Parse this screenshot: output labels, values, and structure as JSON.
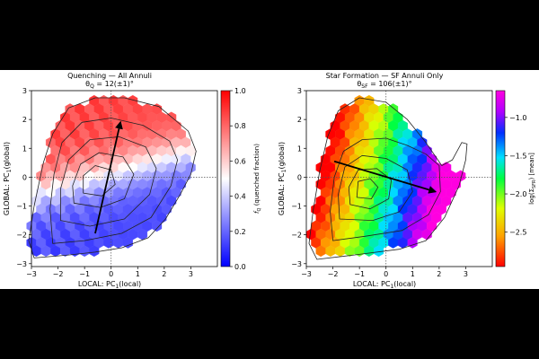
{
  "chart_data": [
    {
      "type": "heatmap",
      "subtype": "hexbin-with-density-contours",
      "title": "Quenching — All Annuli",
      "subtitle": "θ",
      "subtitle_sub": "Q",
      "subtitle_rest": " = 12(±1)°",
      "xlabel_pre": "LOCAL:  PC",
      "xlabel_sub": "1",
      "xlabel_post": "(local)",
      "ylabel_pre": "GLOBAL:  PC",
      "ylabel_sub": "1",
      "ylabel_post": "(global)",
      "xlim": [
        -3,
        4
      ],
      "ylim": [
        -3.1,
        3
      ],
      "xticks": [
        "−3",
        "−2",
        "−1",
        "0",
        "1",
        "2",
        "3"
      ],
      "xtick_values": [
        -3,
        -2,
        -1,
        0,
        1,
        2,
        3
      ],
      "yticks": [
        "3",
        "2",
        "1",
        "0",
        "−1",
        "−2",
        "−3"
      ],
      "ytick_values": [
        3,
        2,
        1,
        0,
        -1,
        -2,
        -3
      ],
      "reference_lines": {
        "x": 0,
        "y": 0
      },
      "arrow": {
        "from": [
          -0.6,
          -1.95
        ],
        "to": [
          0.35,
          1.9
        ]
      },
      "colormap": "bwr",
      "colorbar": {
        "label_pre": "f",
        "label_sub": "Q",
        "label_post": "  (quenched fraction)",
        "range": [
          0.0,
          1.0
        ],
        "ticks": [
          "1.0",
          "0.8",
          "0.6",
          "0.4",
          "0.2",
          "0.0"
        ],
        "tick_values": [
          1.0,
          0.8,
          0.6,
          0.4,
          0.2,
          0.0
        ]
      },
      "contours": [
        [
          [
            -2.9,
            -2.8
          ],
          [
            -1.6,
            -2.7
          ],
          [
            -0.6,
            -2.6
          ],
          [
            0.4,
            -2.45
          ],
          [
            1.4,
            -2.1
          ],
          [
            2.05,
            -1.45
          ],
          [
            2.6,
            -0.6
          ],
          [
            3.0,
            0.1
          ],
          [
            3.2,
            0.9
          ],
          [
            2.9,
            1.6
          ],
          [
            1.8,
            2.45
          ],
          [
            0.5,
            2.75
          ],
          [
            -0.6,
            2.75
          ],
          [
            -1.6,
            2.4
          ],
          [
            -2.2,
            1.5
          ],
          [
            -2.55,
            0.5
          ],
          [
            -2.9,
            -1.0
          ],
          [
            -3.1,
            -2.2
          ]
        ],
        [
          [
            -2.2,
            -2.3
          ],
          [
            -1.0,
            -2.2
          ],
          [
            0.4,
            -1.95
          ],
          [
            1.5,
            -1.4
          ],
          [
            2.25,
            -0.3
          ],
          [
            2.5,
            0.6
          ],
          [
            2.2,
            1.25
          ],
          [
            1.2,
            1.8
          ],
          [
            0.0,
            2.05
          ],
          [
            -1.1,
            1.9
          ],
          [
            -1.85,
            1.2
          ],
          [
            -2.15,
            0.1
          ],
          [
            -2.3,
            -1.1
          ]
        ],
        [
          [
            -1.9,
            -1.5
          ],
          [
            -0.8,
            -1.7
          ],
          [
            0.5,
            -1.45
          ],
          [
            1.45,
            -0.6
          ],
          [
            1.7,
            0.3
          ],
          [
            1.3,
            1.05
          ],
          [
            0.3,
            1.4
          ],
          [
            -0.8,
            1.3
          ],
          [
            -1.6,
            0.6
          ],
          [
            -1.9,
            -0.4
          ]
        ],
        [
          [
            -1.4,
            -0.9
          ],
          [
            -0.4,
            -1.05
          ],
          [
            0.5,
            -0.75
          ],
          [
            0.85,
            0.1
          ],
          [
            0.45,
            0.7
          ],
          [
            -0.45,
            0.85
          ],
          [
            -1.15,
            0.45
          ],
          [
            -1.45,
            -0.3
          ]
        ],
        [
          [
            -1.05,
            -0.55
          ],
          [
            -0.35,
            -0.65
          ],
          [
            0.15,
            -0.25
          ],
          [
            0.0,
            0.25
          ],
          [
            -0.6,
            0.4
          ],
          [
            -1.05,
            0.05
          ]
        ]
      ]
    },
    {
      "type": "heatmap",
      "subtype": "hexbin-with-density-contours",
      "title": "Star Formation — SF Annuli Only",
      "subtitle": "θ",
      "subtitle_sub": "SF",
      "subtitle_rest": " = 106(±1)°",
      "xlabel_pre": "LOCAL:  PC",
      "xlabel_sub": "1",
      "xlabel_post": "(local)",
      "ylabel_pre": "GLOBAL:  PC",
      "ylabel_sub": "1",
      "ylabel_post": "(global)",
      "xlim": [
        -3,
        4
      ],
      "ylim": [
        -3.1,
        3
      ],
      "xticks": [
        "−3",
        "−2",
        "−1",
        "0",
        "1",
        "2",
        "3"
      ],
      "xtick_values": [
        -3,
        -2,
        -1,
        0,
        1,
        2,
        3
      ],
      "yticks": [
        "3",
        "2",
        "1",
        "0",
        "−1",
        "−2",
        "−3"
      ],
      "ytick_values": [
        3,
        2,
        1,
        0,
        -1,
        -2,
        -3
      ],
      "reference_lines": {
        "x": 0,
        "y": 0
      },
      "arrow": {
        "from": [
          -1.95,
          0.55
        ],
        "to": [
          1.85,
          -0.5
        ]
      },
      "colormap": "gist_rainbow",
      "colorbar": {
        "label_pre": "log(Σ",
        "label_sub": "SFR",
        "label_post": ")  [mean]",
        "range": [
          -2.95,
          -0.65
        ],
        "ticks": [
          "−1.0",
          "−1.5",
          "−2.0",
          "−2.5"
        ],
        "tick_values": [
          -1.0,
          -1.5,
          -2.0,
          -2.5
        ]
      },
      "contours": [
        [
          [
            -2.6,
            -2.85
          ],
          [
            -1.2,
            -2.7
          ],
          [
            0.5,
            -2.5
          ],
          [
            1.5,
            -2.2
          ],
          [
            2.2,
            -1.4
          ],
          [
            2.75,
            -0.3
          ],
          [
            3.0,
            0.6
          ],
          [
            3.05,
            1.15
          ],
          [
            2.85,
            1.2
          ],
          [
            2.5,
            0.6
          ],
          [
            2.1,
            0.4
          ],
          [
            1.5,
            1.2
          ],
          [
            0.8,
            2.0
          ],
          [
            0.0,
            2.6
          ],
          [
            -1.0,
            2.75
          ],
          [
            -1.8,
            2.3
          ],
          [
            -2.2,
            1.4
          ],
          [
            -2.5,
            0.2
          ],
          [
            -2.75,
            -1.2
          ],
          [
            -2.9,
            -2.3
          ]
        ],
        [
          [
            -2.0,
            -2.2
          ],
          [
            -0.8,
            -2.05
          ],
          [
            0.6,
            -1.85
          ],
          [
            1.6,
            -1.3
          ],
          [
            2.05,
            -0.5
          ],
          [
            2.0,
            0.4
          ],
          [
            1.5,
            0.8
          ],
          [
            0.8,
            1.1
          ],
          [
            0.0,
            1.35
          ],
          [
            -0.9,
            1.3
          ],
          [
            -1.6,
            0.9
          ],
          [
            -1.95,
            0.0
          ],
          [
            -2.1,
            -1.2
          ]
        ],
        [
          [
            -1.75,
            -1.45
          ],
          [
            -0.5,
            -1.5
          ],
          [
            0.5,
            -1.2
          ],
          [
            1.0,
            -0.5
          ],
          [
            0.8,
            0.25
          ],
          [
            0.0,
            0.65
          ],
          [
            -0.9,
            0.75
          ],
          [
            -1.55,
            0.35
          ],
          [
            -1.8,
            -0.6
          ]
        ],
        [
          [
            -1.35,
            -0.95
          ],
          [
            -0.6,
            -1.1
          ],
          [
            0.1,
            -0.75
          ],
          [
            0.2,
            -0.1
          ],
          [
            -0.35,
            0.3
          ],
          [
            -1.05,
            0.25
          ],
          [
            -1.4,
            -0.35
          ]
        ],
        [
          [
            -1.1,
            -0.7
          ],
          [
            -0.55,
            -0.75
          ],
          [
            -0.3,
            -0.35
          ],
          [
            -0.6,
            -0.05
          ],
          [
            -1.05,
            -0.15
          ]
        ]
      ]
    }
  ]
}
